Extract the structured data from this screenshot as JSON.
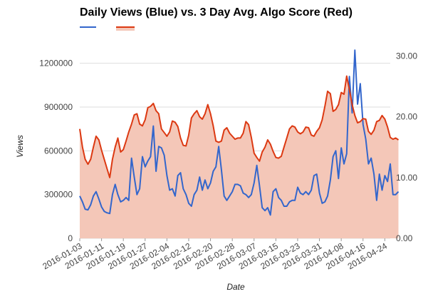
{
  "chart_data": {
    "type": "line",
    "title": "Daily Views (Blue) vs. 3 Day Avg. Algo Score (Red)",
    "xlabel": "Date",
    "ylabel": "Views",
    "x_ticks": [
      "2016-01-03",
      "2016-01-11",
      "2016-01-19",
      "2016-01-27",
      "2016-02-04",
      "2016-02-12",
      "2016-02-20",
      "2016-02-28",
      "2016-03-07",
      "2016-03-15",
      "2016-03-23",
      "2016-03-31",
      "2016-04-08",
      "2016-04-16",
      "2016-04-24"
    ],
    "y_left_ticks": [
      "0",
      "300000",
      "600000",
      "900000",
      "1200000"
    ],
    "y_right_ticks": [
      "0.00",
      "10.00",
      "20.00",
      "30.00"
    ],
    "y_left_range": [
      0,
      1350000
    ],
    "y_right_range": [
      0,
      32.4
    ],
    "x_range": [
      "2016-01-03",
      "2016-04-26"
    ],
    "grid": true,
    "legend": "top-left",
    "colors": {
      "views": "#3366cc",
      "score_line": "#dc3912",
      "score_fill": "#f4c7b8"
    },
    "series": [
      {
        "axis": "left",
        "style": "line",
        "points": [
          [
            "2016-01-03",
            290000
          ],
          [
            "2016-01-04",
            250000
          ],
          [
            "2016-01-05",
            200000
          ],
          [
            "2016-01-06",
            195000
          ],
          [
            "2016-01-07",
            230000
          ],
          [
            "2016-01-08",
            290000
          ],
          [
            "2016-01-09",
            320000
          ],
          [
            "2016-01-10",
            270000
          ],
          [
            "2016-01-11",
            215000
          ],
          [
            "2016-01-12",
            185000
          ],
          [
            "2016-01-13",
            175000
          ],
          [
            "2016-01-14",
            170000
          ],
          [
            "2016-01-15",
            300000
          ],
          [
            "2016-01-16",
            370000
          ],
          [
            "2016-01-17",
            300000
          ],
          [
            "2016-01-18",
            250000
          ],
          [
            "2016-01-19",
            260000
          ],
          [
            "2016-01-20",
            280000
          ],
          [
            "2016-01-21",
            260000
          ],
          [
            "2016-01-22",
            550000
          ],
          [
            "2016-01-23",
            420000
          ],
          [
            "2016-01-24",
            300000
          ],
          [
            "2016-01-25",
            340000
          ],
          [
            "2016-01-26",
            560000
          ],
          [
            "2016-01-27",
            490000
          ],
          [
            "2016-01-28",
            530000
          ],
          [
            "2016-01-29",
            560000
          ],
          [
            "2016-01-30",
            770000
          ],
          [
            "2016-01-31",
            460000
          ],
          [
            "2016-02-01",
            630000
          ],
          [
            "2016-02-02",
            620000
          ],
          [
            "2016-02-03",
            570000
          ],
          [
            "2016-02-04",
            430000
          ],
          [
            "2016-02-05",
            330000
          ],
          [
            "2016-02-06",
            340000
          ],
          [
            "2016-02-07",
            290000
          ],
          [
            "2016-02-08",
            430000
          ],
          [
            "2016-02-09",
            450000
          ],
          [
            "2016-02-10",
            340000
          ],
          [
            "2016-02-11",
            300000
          ],
          [
            "2016-02-12",
            240000
          ],
          [
            "2016-02-13",
            220000
          ],
          [
            "2016-02-14",
            300000
          ],
          [
            "2016-02-15",
            330000
          ],
          [
            "2016-02-16",
            420000
          ],
          [
            "2016-02-17",
            330000
          ],
          [
            "2016-02-18",
            400000
          ],
          [
            "2016-02-19",
            340000
          ],
          [
            "2016-02-20",
            380000
          ],
          [
            "2016-02-21",
            460000
          ],
          [
            "2016-02-22",
            490000
          ],
          [
            "2016-02-23",
            630000
          ],
          [
            "2016-02-24",
            470000
          ],
          [
            "2016-02-25",
            290000
          ],
          [
            "2016-02-26",
            260000
          ],
          [
            "2016-02-27",
            290000
          ],
          [
            "2016-02-28",
            320000
          ],
          [
            "2016-02-29",
            370000
          ],
          [
            "2016-03-01",
            370000
          ],
          [
            "2016-03-02",
            360000
          ],
          [
            "2016-03-03",
            310000
          ],
          [
            "2016-03-04",
            300000
          ],
          [
            "2016-03-05",
            280000
          ],
          [
            "2016-03-06",
            300000
          ],
          [
            "2016-03-07",
            380000
          ],
          [
            "2016-03-08",
            500000
          ],
          [
            "2016-03-09",
            360000
          ],
          [
            "2016-03-10",
            210000
          ],
          [
            "2016-03-11",
            190000
          ],
          [
            "2016-03-12",
            210000
          ],
          [
            "2016-03-13",
            160000
          ],
          [
            "2016-03-14",
            320000
          ],
          [
            "2016-03-15",
            340000
          ],
          [
            "2016-03-16",
            280000
          ],
          [
            "2016-03-17",
            260000
          ],
          [
            "2016-03-18",
            220000
          ],
          [
            "2016-03-19",
            220000
          ],
          [
            "2016-03-20",
            250000
          ],
          [
            "2016-03-21",
            260000
          ],
          [
            "2016-03-22",
            260000
          ],
          [
            "2016-03-23",
            350000
          ],
          [
            "2016-03-24",
            310000
          ],
          [
            "2016-03-25",
            300000
          ],
          [
            "2016-03-26",
            320000
          ],
          [
            "2016-03-27",
            300000
          ],
          [
            "2016-03-28",
            330000
          ],
          [
            "2016-03-29",
            430000
          ],
          [
            "2016-03-30",
            440000
          ],
          [
            "2016-03-31",
            310000
          ],
          [
            "2016-04-01",
            240000
          ],
          [
            "2016-04-02",
            250000
          ],
          [
            "2016-04-03",
            290000
          ],
          [
            "2016-04-04",
            400000
          ],
          [
            "2016-04-05",
            560000
          ],
          [
            "2016-04-06",
            600000
          ],
          [
            "2016-04-07",
            410000
          ],
          [
            "2016-04-08",
            620000
          ],
          [
            "2016-04-09",
            510000
          ],
          [
            "2016-04-10",
            580000
          ],
          [
            "2016-04-11",
            1110000
          ],
          [
            "2016-04-12",
            860000
          ],
          [
            "2016-04-13",
            1290000
          ],
          [
            "2016-04-14",
            920000
          ],
          [
            "2016-04-15",
            1060000
          ],
          [
            "2016-04-16",
            780000
          ],
          [
            "2016-04-17",
            680000
          ],
          [
            "2016-04-18",
            510000
          ],
          [
            "2016-04-19",
            550000
          ],
          [
            "2016-04-20",
            440000
          ],
          [
            "2016-04-21",
            260000
          ],
          [
            "2016-04-22",
            440000
          ],
          [
            "2016-04-23",
            330000
          ],
          [
            "2016-04-24",
            430000
          ],
          [
            "2016-04-25",
            390000
          ],
          [
            "2016-04-26",
            510000
          ],
          [
            "2016-04-27",
            300000
          ],
          [
            "2016-04-28",
            300000
          ],
          [
            "2016-04-29",
            320000
          ]
        ]
      },
      {
        "axis": "right",
        "style": "area",
        "points": [
          [
            "2016-01-03",
            18.0
          ],
          [
            "2016-01-04",
            15.0
          ],
          [
            "2016-01-05",
            13.0
          ],
          [
            "2016-01-06",
            12.2
          ],
          [
            "2016-01-07",
            13.0
          ],
          [
            "2016-01-08",
            15.0
          ],
          [
            "2016-01-09",
            16.8
          ],
          [
            "2016-01-10",
            16.2
          ],
          [
            "2016-01-11",
            14.5
          ],
          [
            "2016-01-12",
            13.0
          ],
          [
            "2016-01-13",
            11.5
          ],
          [
            "2016-01-14",
            10.0
          ],
          [
            "2016-01-15",
            13.0
          ],
          [
            "2016-01-16",
            15.0
          ],
          [
            "2016-01-17",
            16.5
          ],
          [
            "2016-01-18",
            14.2
          ],
          [
            "2016-01-19",
            14.6
          ],
          [
            "2016-01-20",
            16.0
          ],
          [
            "2016-01-21",
            17.5
          ],
          [
            "2016-01-22",
            18.8
          ],
          [
            "2016-01-23",
            20.3
          ],
          [
            "2016-01-24",
            20.5
          ],
          [
            "2016-01-25",
            18.8
          ],
          [
            "2016-01-26",
            18.5
          ],
          [
            "2016-01-27",
            19.5
          ],
          [
            "2016-01-28",
            21.5
          ],
          [
            "2016-01-29",
            21.7
          ],
          [
            "2016-01-30",
            22.2
          ],
          [
            "2016-01-31",
            21.0
          ],
          [
            "2016-02-01",
            20.5
          ],
          [
            "2016-02-02",
            18.0
          ],
          [
            "2016-02-03",
            17.4
          ],
          [
            "2016-02-04",
            16.8
          ],
          [
            "2016-02-05",
            17.5
          ],
          [
            "2016-02-06",
            19.3
          ],
          [
            "2016-02-07",
            19.1
          ],
          [
            "2016-02-08",
            18.4
          ],
          [
            "2016-02-09",
            16.5
          ],
          [
            "2016-02-10",
            15.3
          ],
          [
            "2016-02-11",
            15.2
          ],
          [
            "2016-02-12",
            17.0
          ],
          [
            "2016-02-13",
            19.8
          ],
          [
            "2016-02-14",
            20.5
          ],
          [
            "2016-02-15",
            21.0
          ],
          [
            "2016-02-16",
            20.0
          ],
          [
            "2016-02-17",
            19.6
          ],
          [
            "2016-02-18",
            20.5
          ],
          [
            "2016-02-19",
            22.0
          ],
          [
            "2016-02-20",
            20.5
          ],
          [
            "2016-02-21",
            18.5
          ],
          [
            "2016-02-22",
            16.0
          ],
          [
            "2016-02-23",
            15.8
          ],
          [
            "2016-02-24",
            16.0
          ],
          [
            "2016-02-25",
            17.8
          ],
          [
            "2016-02-26",
            18.2
          ],
          [
            "2016-02-27",
            17.3
          ],
          [
            "2016-02-28",
            16.8
          ],
          [
            "2016-02-29",
            16.3
          ],
          [
            "2016-03-01",
            16.5
          ],
          [
            "2016-03-02",
            16.5
          ],
          [
            "2016-03-03",
            17.3
          ],
          [
            "2016-03-04",
            19.2
          ],
          [
            "2016-03-05",
            18.7
          ],
          [
            "2016-03-06",
            16.6
          ],
          [
            "2016-03-07",
            14.0
          ],
          [
            "2016-03-08",
            13.3
          ],
          [
            "2016-03-09",
            12.7
          ],
          [
            "2016-03-10",
            14.2
          ],
          [
            "2016-03-11",
            15.0
          ],
          [
            "2016-03-12",
            16.2
          ],
          [
            "2016-03-13",
            15.5
          ],
          [
            "2016-03-14",
            14.3
          ],
          [
            "2016-03-15",
            13.3
          ],
          [
            "2016-03-16",
            13.2
          ],
          [
            "2016-03-17",
            13.5
          ],
          [
            "2016-03-18",
            15.0
          ],
          [
            "2016-03-19",
            16.5
          ],
          [
            "2016-03-20",
            18.0
          ],
          [
            "2016-03-21",
            18.5
          ],
          [
            "2016-03-22",
            18.3
          ],
          [
            "2016-03-23",
            17.5
          ],
          [
            "2016-03-24",
            17.2
          ],
          [
            "2016-03-25",
            17.5
          ],
          [
            "2016-03-26",
            18.3
          ],
          [
            "2016-03-27",
            18.2
          ],
          [
            "2016-03-28",
            17.0
          ],
          [
            "2016-03-29",
            16.8
          ],
          [
            "2016-03-30",
            17.6
          ],
          [
            "2016-03-31",
            18.2
          ],
          [
            "2016-04-01",
            19.5
          ],
          [
            "2016-04-02",
            21.7
          ],
          [
            "2016-04-03",
            24.2
          ],
          [
            "2016-04-04",
            23.8
          ],
          [
            "2016-04-05",
            20.9
          ],
          [
            "2016-04-06",
            21.2
          ],
          [
            "2016-04-07",
            22.0
          ],
          [
            "2016-04-08",
            24.0
          ],
          [
            "2016-04-09",
            23.7
          ],
          [
            "2016-04-10",
            26.7
          ],
          [
            "2016-04-11",
            24.5
          ],
          [
            "2016-04-12",
            22.0
          ],
          [
            "2016-04-13",
            20.2
          ],
          [
            "2016-04-14",
            19.0
          ],
          [
            "2016-04-15",
            19.2
          ],
          [
            "2016-04-16",
            19.7
          ],
          [
            "2016-04-17",
            19.6
          ],
          [
            "2016-04-18",
            17.6
          ],
          [
            "2016-04-19",
            17.1
          ],
          [
            "2016-04-20",
            17.8
          ],
          [
            "2016-04-21",
            19.2
          ],
          [
            "2016-04-22",
            19.4
          ],
          [
            "2016-04-23",
            20.2
          ],
          [
            "2016-04-24",
            19.6
          ],
          [
            "2016-04-25",
            18.3
          ],
          [
            "2016-04-26",
            16.6
          ],
          [
            "2016-04-27",
            16.3
          ],
          [
            "2016-04-28",
            16.5
          ],
          [
            "2016-04-29",
            16.2
          ]
        ]
      }
    ]
  }
}
